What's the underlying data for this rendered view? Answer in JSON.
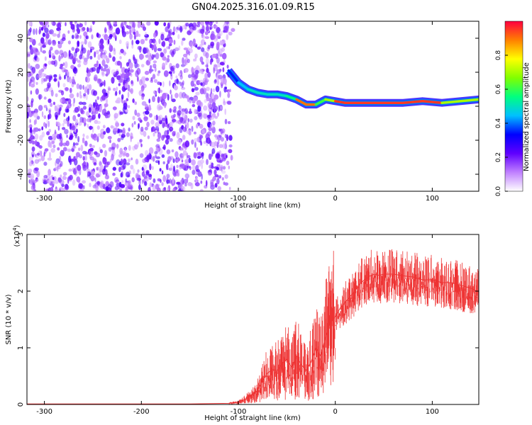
{
  "title": "GN04.2025.316.01.09.R15",
  "chart_data": [
    {
      "type": "heatmap",
      "name": "spectrogram",
      "xlabel": "Height of straight line (km)",
      "ylabel": "Frequency (Hz)",
      "xlim": [
        -318,
        148
      ],
      "ylim": [
        -50,
        50
      ],
      "xticks": [
        -300,
        -200,
        -100,
        0,
        100
      ],
      "xtick_labels": [
        "-300",
        "-200",
        "-100",
        "0",
        "100"
      ],
      "yticks": [
        -40,
        -20,
        0,
        20,
        40
      ],
      "ytick_labels": [
        "-40",
        "-20",
        "0",
        "20",
        "40"
      ],
      "colorbar": {
        "label": "Normalized spectral amplitude",
        "range": [
          0,
          1
        ],
        "ticks": [
          0.0,
          0.2,
          0.4,
          0.6,
          0.8
        ],
        "tick_labels": [
          "0.0",
          "0.2",
          "0.4",
          "0.6",
          "0.8"
        ],
        "colors": [
          "#ffffff",
          "#c080ff",
          "#6000ff",
          "#0000ff",
          "#00c0ff",
          "#00ff80",
          "#80ff00",
          "#ffff00",
          "#ff8000",
          "#ff0040"
        ]
      },
      "noise_region": {
        "x": [
          -318,
          -110
        ],
        "y": [
          -50,
          50
        ],
        "level": 0.18
      },
      "signal_trace": [
        {
          "x": -110,
          "y": 21,
          "amp": 0.25
        },
        {
          "x": -100,
          "y": 14,
          "amp": 0.35
        },
        {
          "x": -90,
          "y": 10,
          "amp": 0.45
        },
        {
          "x": -80,
          "y": 8,
          "amp": 0.5
        },
        {
          "x": -70,
          "y": 7,
          "amp": 0.5
        },
        {
          "x": -60,
          "y": 7,
          "amp": 0.5
        },
        {
          "x": -50,
          "y": 6,
          "amp": 0.5
        },
        {
          "x": -40,
          "y": 4,
          "amp": 0.55
        },
        {
          "x": -30,
          "y": 1,
          "amp": 0.9
        },
        {
          "x": -20,
          "y": 1,
          "amp": 0.9
        },
        {
          "x": -10,
          "y": 4,
          "amp": 0.6
        },
        {
          "x": 0,
          "y": 3,
          "amp": 0.7
        },
        {
          "x": 10,
          "y": 2,
          "amp": 0.95
        },
        {
          "x": 40,
          "y": 2,
          "amp": 0.95
        },
        {
          "x": 70,
          "y": 2,
          "amp": 0.95
        },
        {
          "x": 90,
          "y": 3,
          "amp": 0.95
        },
        {
          "x": 110,
          "y": 2,
          "amp": 0.95
        },
        {
          "x": 148,
          "y": 4,
          "amp": 0.7
        }
      ]
    },
    {
      "type": "line",
      "name": "snr",
      "xlabel": "Height of straight line (km)",
      "ylabel": "SNR (10 * v/v)",
      "y_multiplier": "(x10",
      "y_multiplier_exp": "4",
      "y_multiplier_close": ")",
      "xlim": [
        -318,
        148
      ],
      "ylim": [
        0,
        3
      ],
      "xticks": [
        -300,
        -200,
        -100,
        0,
        100
      ],
      "xtick_labels": [
        "-300",
        "-200",
        "-100",
        "0",
        "100"
      ],
      "yticks": [
        0,
        1,
        2,
        3
      ],
      "ytick_labels": [
        "0",
        "1",
        "2",
        "3"
      ],
      "color": "#ee3333",
      "series": [
        {
          "name": "SNR",
          "x": [
            -318,
            -250,
            -150,
            -110,
            -100,
            -90,
            -80,
            -75,
            -70,
            -65,
            -60,
            -55,
            -50,
            -45,
            -40,
            -35,
            -30,
            -25,
            -20,
            -15,
            -10,
            -5,
            0,
            5,
            10,
            15,
            20,
            25,
            30,
            35,
            40,
            45,
            50,
            60,
            70,
            80,
            90,
            100,
            110,
            120,
            130,
            140,
            148
          ],
          "y": [
            0.01,
            0.01,
            0.01,
            0.02,
            0.04,
            0.12,
            0.25,
            0.42,
            0.55,
            0.62,
            0.6,
            0.72,
            0.8,
            0.65,
            0.85,
            0.7,
            0.6,
            0.75,
            1.0,
            0.85,
            1.2,
            1.45,
            1.55,
            1.7,
            1.8,
            1.9,
            2.0,
            2.12,
            2.2,
            2.26,
            2.3,
            2.28,
            2.3,
            2.3,
            2.27,
            2.25,
            2.2,
            2.2,
            2.15,
            2.15,
            2.1,
            2.05,
            1.98
          ]
        }
      ]
    }
  ]
}
